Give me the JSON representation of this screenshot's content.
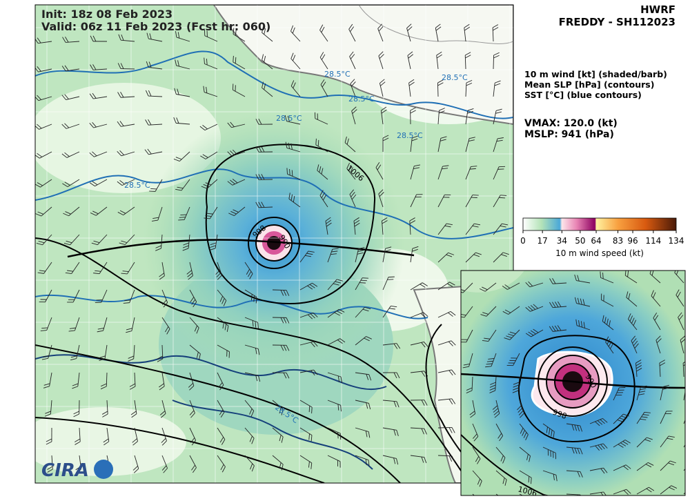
{
  "header": {
    "init": "Init:   18z 08 Feb 2023",
    "valid": "Valid: 06z 11 Feb 2023 (Fcst hr: 060)",
    "model": "HWRF",
    "storm": "FREDDY - SH112023"
  },
  "legend": {
    "lines": [
      "10 m wind [kt] (shaded/barb)",
      "Mean SLP [hPa] (contours)",
      "SST [°C] (blue contours)"
    ],
    "vmax": "VMAX: 120.0 (kt)",
    "mslp": "MSLP:  941 (hPa)"
  },
  "colorbar": {
    "range": [
      0,
      134
    ],
    "ticks": [
      0,
      17,
      34,
      50,
      64,
      83,
      96,
      114,
      134
    ],
    "label": "10 m wind speed (kt)"
  },
  "map": {
    "sst_labels": [
      "28.5°C",
      "28.5°C",
      "28.5°C",
      "28.5°C",
      "28.5°C",
      "28.5°C",
      "28.5°C"
    ],
    "slp_labels": [
      "1006",
      "998",
      "990"
    ],
    "inset_labels": [
      "990",
      "998",
      "1006"
    ],
    "logo": "CIRA"
  }
}
